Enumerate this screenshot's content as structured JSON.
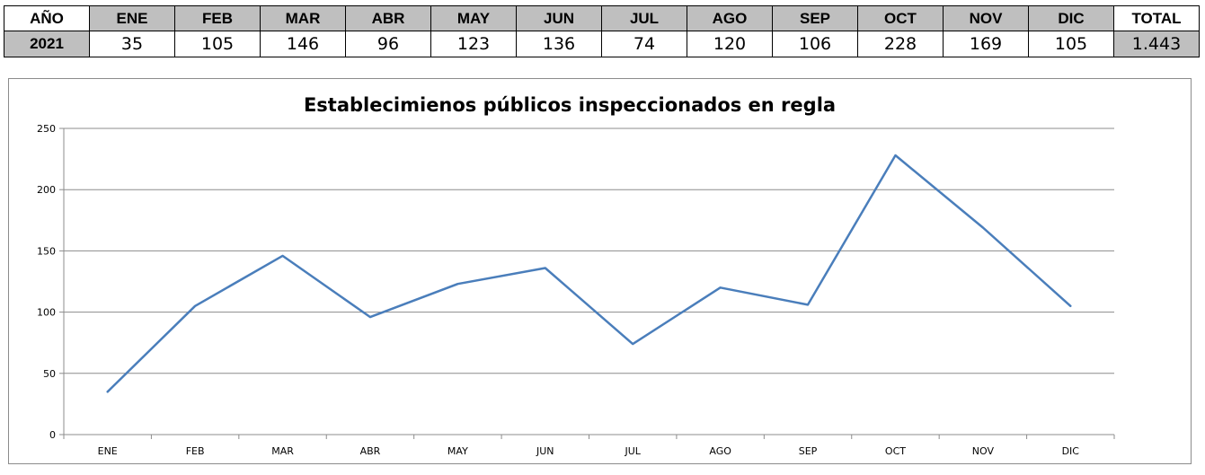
{
  "table": {
    "year_header": "AÑO",
    "months": [
      "ENE",
      "FEB",
      "MAR",
      "ABR",
      "MAY",
      "JUN",
      "JUL",
      "AGO",
      "SEP",
      "OCT",
      "NOV",
      "DIC"
    ],
    "total_header": "TOTAL",
    "year": "2021",
    "values": [
      "35",
      "105",
      "146",
      "96",
      "123",
      "136",
      "74",
      "120",
      "106",
      "228",
      "169",
      "105"
    ],
    "total": "1.443"
  },
  "chart_data": {
    "type": "line",
    "title": "Establecimienos  públicos  inspeccionados  en regla",
    "categories": [
      "ENE",
      "FEB",
      "MAR",
      "ABR",
      "MAY",
      "JUN",
      "JUL",
      "AGO",
      "SEP",
      "OCT",
      "NOV",
      "DIC"
    ],
    "series": [
      {
        "values": [
          35,
          105,
          146,
          96,
          123,
          136,
          74,
          120,
          106,
          228,
          169,
          105
        ],
        "color": "#4a7ebb"
      }
    ],
    "ylim": [
      0,
      250
    ],
    "yticks": [
      0,
      50,
      100,
      150,
      200,
      250
    ],
    "grid": true,
    "legend": "none",
    "xlabel": "",
    "ylabel": ""
  }
}
